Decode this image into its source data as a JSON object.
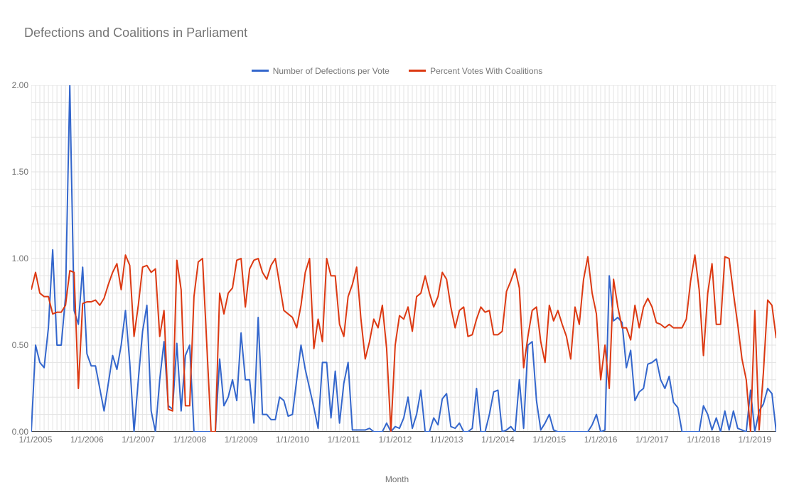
{
  "chart": {
    "type": "line",
    "title": "Defections and Coalitions in Parliament",
    "title_color": "#757575",
    "title_fontsize": 18,
    "background_color": "#ffffff",
    "grid_color": "#e3e3e3",
    "axis_color": "#424242",
    "label_color": "#757575",
    "x_axis_label": "Month",
    "legend": [
      {
        "label": "Number of Defections per Vote",
        "color": "#3366cc"
      },
      {
        "label": "Percent Votes With Coalitions",
        "color": "#dc3912"
      }
    ],
    "ylim": [
      0.0,
      2.0
    ],
    "y_ticks": [
      "0.00",
      "0.50",
      "1.00",
      "1.50",
      "2.00"
    ],
    "x_ticks": [
      "1/1/2005",
      "1/1/2006",
      "1/1/2007",
      "1/1/2008",
      "1/1/2009",
      "1/1/2010",
      "1/1/2011",
      "1/1/2012",
      "1/1/2013",
      "1/1/2014",
      "1/1/2015",
      "1/1/2016",
      "1/1/2017",
      "1/1/2018",
      "1/1/2019"
    ],
    "x_tick_columns": [
      1,
      13,
      25,
      37,
      49,
      61,
      73,
      85,
      97,
      109,
      121,
      133,
      145,
      157,
      169
    ],
    "grid_columns": 175,
    "series": [
      {
        "name": "Number of Defections per Vote",
        "color": "#3366cc",
        "line_width": 2,
        "values": [
          0.0,
          0.5,
          0.4,
          0.37,
          0.6,
          1.05,
          0.5,
          0.5,
          0.78,
          2.0,
          0.7,
          0.62,
          0.95,
          0.45,
          0.38,
          0.38,
          0.25,
          0.12,
          0.28,
          0.44,
          0.36,
          0.5,
          0.7,
          0.4,
          0.0,
          0.3,
          0.58,
          0.73,
          0.12,
          0.0,
          0.3,
          0.52,
          0.15,
          0.13,
          0.51,
          0.12,
          0.44,
          0.5,
          0.0,
          0.0,
          0.0,
          0.0,
          0.0,
          0.0,
          0.42,
          0.15,
          0.2,
          0.3,
          0.18,
          0.57,
          0.3,
          0.3,
          0.05,
          0.66,
          0.1,
          0.1,
          0.07,
          0.07,
          0.2,
          0.18,
          0.09,
          0.1,
          0.3,
          0.5,
          0.36,
          0.25,
          0.14,
          0.02,
          0.4,
          0.4,
          0.08,
          0.35,
          0.05,
          0.28,
          0.4,
          0.01,
          0.01,
          0.01,
          0.01,
          0.02,
          0.0,
          0.0,
          0.0,
          0.05,
          0.0,
          0.03,
          0.02,
          0.08,
          0.2,
          0.02,
          0.1,
          0.24,
          0.0,
          0.0,
          0.08,
          0.04,
          0.19,
          0.22,
          0.03,
          0.02,
          0.05,
          0.0,
          0.0,
          0.02,
          0.25,
          0.0,
          0.0,
          0.1,
          0.23,
          0.24,
          0.0,
          0.01,
          0.03,
          0.0,
          0.3,
          0.02,
          0.5,
          0.52,
          0.18,
          0.01,
          0.05,
          0.1,
          0.01,
          0.0,
          0.0,
          0.0,
          0.0,
          0.0,
          0.0,
          0.0,
          0.0,
          0.04,
          0.1,
          0.0,
          0.01,
          0.9,
          0.64,
          0.66,
          0.63,
          0.37,
          0.47,
          0.18,
          0.23,
          0.25,
          0.39,
          0.4,
          0.42,
          0.3,
          0.25,
          0.32,
          0.17,
          0.14,
          0.0,
          0.0,
          0.0,
          0.0,
          0.0,
          0.15,
          0.1,
          0.01,
          0.08,
          0.0,
          0.12,
          0.01,
          0.12,
          0.02,
          0.01,
          0.0,
          0.24,
          0.0,
          0.12,
          0.16,
          0.25,
          0.22,
          0.0
        ]
      },
      {
        "name": "Percent Votes With Coalitions",
        "color": "#dc3912",
        "line_width": 2,
        "values": [
          0.82,
          0.92,
          0.8,
          0.78,
          0.78,
          0.68,
          0.69,
          0.69,
          0.73,
          0.93,
          0.92,
          0.25,
          0.74,
          0.75,
          0.75,
          0.76,
          0.73,
          0.77,
          0.85,
          0.92,
          0.97,
          0.82,
          1.02,
          0.96,
          0.55,
          0.73,
          0.95,
          0.96,
          0.92,
          0.94,
          0.55,
          0.7,
          0.13,
          0.12,
          0.99,
          0.82,
          0.15,
          0.15,
          0.78,
          0.98,
          1.0,
          0.5,
          0.0,
          0.0,
          0.8,
          0.68,
          0.8,
          0.83,
          0.99,
          1.0,
          0.72,
          0.94,
          0.99,
          1.0,
          0.92,
          0.88,
          0.96,
          1.0,
          0.85,
          0.7,
          0.68,
          0.66,
          0.6,
          0.73,
          0.92,
          1.0,
          0.48,
          0.65,
          0.52,
          1.0,
          0.9,
          0.9,
          0.62,
          0.55,
          0.78,
          0.85,
          0.95,
          0.65,
          0.42,
          0.52,
          0.65,
          0.6,
          0.73,
          0.48,
          0.0,
          0.5,
          0.67,
          0.65,
          0.72,
          0.58,
          0.78,
          0.8,
          0.9,
          0.8,
          0.72,
          0.78,
          0.92,
          0.88,
          0.72,
          0.6,
          0.7,
          0.72,
          0.55,
          0.56,
          0.65,
          0.72,
          0.69,
          0.7,
          0.56,
          0.56,
          0.58,
          0.81,
          0.87,
          0.94,
          0.83,
          0.37,
          0.55,
          0.7,
          0.72,
          0.52,
          0.4,
          0.73,
          0.64,
          0.7,
          0.62,
          0.55,
          0.42,
          0.72,
          0.62,
          0.88,
          1.01,
          0.8,
          0.68,
          0.3,
          0.5,
          0.25,
          0.88,
          0.72,
          0.6,
          0.6,
          0.53,
          0.73,
          0.6,
          0.72,
          0.77,
          0.72,
          0.63,
          0.62,
          0.6,
          0.62,
          0.6,
          0.6,
          0.6,
          0.65,
          0.87,
          1.02,
          0.82,
          0.44,
          0.8,
          0.97,
          0.62,
          0.62,
          1.01,
          1.0,
          0.8,
          0.62,
          0.42,
          0.3,
          0.0,
          0.7,
          0.01,
          0.34,
          0.76,
          0.73,
          0.54
        ]
      }
    ]
  }
}
